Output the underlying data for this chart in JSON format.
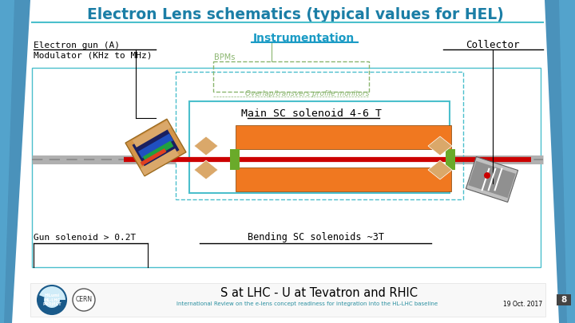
{
  "title": "Electron Lens schematics (typical values for HEL)",
  "title_color": "#1b7ea6",
  "title_fontsize": 13.5,
  "slide_bg": "#ffffff",
  "instrumentation_label": "Instrumentation",
  "instrumentation_color": "#1a9bc5",
  "bpms_label": "BPMs",
  "bpms_color": "#8ab56e",
  "overlap_label": "Overlap/transvers profile monitors",
  "overlap_color": "#8ab56e",
  "main_solenoid_label": "Main SC solenoid 4-6 T",
  "gun_label": "Electron gun (A)",
  "modulator_label": "Modulator (KHz to MHz)",
  "collector_label": "Collector",
  "gun_solenoid_label": "Gun solenoid > 0.2T",
  "bending_label": "Bending SC solenoids ~3T",
  "bottom_label": "S at LHC - U at Tevatron and RHIC",
  "bottom_sub": "International Review on the e-lens concept readiness for integration into the HL-LHC baseline",
  "bottom_date": "19 Oct. 2017",
  "page_num": "8",
  "orange_color": "#f07820",
  "red_color": "#cc0000",
  "teal_color": "#4bbfcc",
  "teal_dark": "#2a8fa0",
  "green_accent": "#6aaa2a",
  "gray_beam": "#b0b0b0",
  "tan_color": "#daa86a",
  "gray_collector": "#909090",
  "blue_side": "#2a7fb0",
  "blue_side2": "#1a5a8a"
}
